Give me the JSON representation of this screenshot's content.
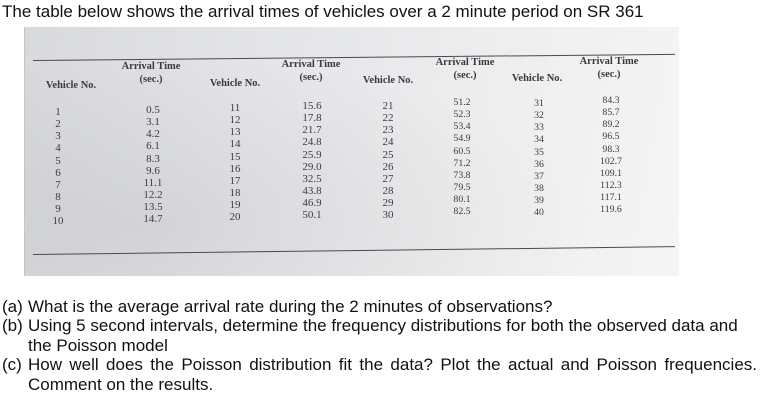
{
  "intro": "The table below shows the arrival times of vehicles over a 2 minute period on SR 361",
  "table": {
    "headers": {
      "vehicle_no": "Vehicle No.",
      "arrival_time": "Arrival Time",
      "arrival_unit": "(sec.)"
    },
    "vehicles": [
      [
        "1",
        "2",
        "3",
        "4",
        "5",
        "6",
        "7",
        "8",
        "9",
        "10"
      ],
      [
        "11",
        "12",
        "13",
        "14",
        "15",
        "16",
        "17",
        "18",
        "19",
        "20"
      ],
      [
        "21",
        "22",
        "23",
        "24",
        "25",
        "26",
        "27",
        "28",
        "29",
        "30"
      ],
      [
        "31",
        "32",
        "33",
        "34",
        "35",
        "36",
        "37",
        "38",
        "39",
        "40"
      ]
    ],
    "times": [
      [
        "0.5",
        "3.1",
        "4.2",
        "6.1",
        "8.3",
        "9.6",
        "11.1",
        "12.2",
        "13.5",
        "14.7"
      ],
      [
        "15.6",
        "17.8",
        "21.7",
        "24.8",
        "25.9",
        "29.0",
        "32.5",
        "43.8",
        "46.9",
        "50.1"
      ],
      [
        "51.2",
        "52.3",
        "53.4",
        "54.9",
        "60.5",
        "71.2",
        "73.8",
        "79.5",
        "80.1",
        "82.5"
      ],
      [
        "84.3",
        "85.7",
        "89.2",
        "96.5",
        "98.3",
        "102.7",
        "109.1",
        "112.3",
        "117.1",
        "119.6"
      ]
    ]
  },
  "questions": [
    {
      "label": "(a)",
      "text": "What is the average arrival rate during the 2 minutes of observations?"
    },
    {
      "label": "(b)",
      "text": "Using 5 second intervals, determine the frequency distributions for both the observed data and the Poisson model"
    },
    {
      "label": "(c)",
      "text": "How well does the Poisson distribution fit the data? Plot the actual and Poisson frequencies. Comment on the results."
    }
  ]
}
